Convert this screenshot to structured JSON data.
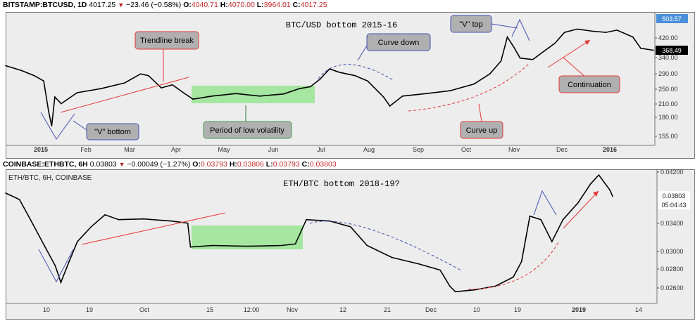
{
  "header_top": {
    "symbol": "BITSTAMP:BTCUSD, 1D",
    "last": "4017.25",
    "change": "−23.46 (−0.58%)",
    "o_label": "O:",
    "o": "4040.71",
    "h_label": "H:",
    "h": "4070.00",
    "l_label": "L:",
    "l": "3964.01",
    "c_label": "C:",
    "c": "4017.25"
  },
  "header_bottom": {
    "symbol": "COINBASE:ETHBTC, 6H",
    "last": "0.03803",
    "change": "−0.00049 (−1.27%)",
    "o_label": "O:",
    "o": "0.03793",
    "h_label": "H:",
    "h": "0.03806",
    "l_label": "L:",
    "l": "0.03793",
    "c_label": "C:",
    "c": "0.03803",
    "legend": "ETH/BTC, 6H, COINBASE"
  },
  "colors": {
    "up": "#000000",
    "red_line": "#e53935",
    "blue_line": "#3f51b5",
    "green_zone": "#a5e6a0",
    "price_tag_top": "#4a90d9",
    "callout_fill": "#b0b0b0"
  },
  "chart_data": [
    {
      "type": "line",
      "title": "BTC/USD bottom 2015-16",
      "yscale": "log",
      "ylim": [
        140,
        510
      ],
      "yticks": [
        "503.57",
        "420.00",
        "368.49",
        "340.00",
        "290.00",
        "250.00",
        "210.00",
        "180.00",
        "155.00"
      ],
      "current_price": "368.49",
      "xticks": [
        "2015",
        "Feb",
        "Mar",
        "Apr",
        "May",
        "Jun",
        "Jul",
        "Aug",
        "Sep",
        "Oct",
        "Nov",
        "Dec",
        "2016"
      ],
      "x_unit": "day index from 2014-12-20",
      "points": [
        [
          0,
          315
        ],
        [
          10,
          300
        ],
        [
          18,
          285
        ],
        [
          24,
          270
        ],
        [
          27,
          200
        ],
        [
          29,
          172
        ],
        [
          31,
          230
        ],
        [
          35,
          215
        ],
        [
          45,
          240
        ],
        [
          60,
          250
        ],
        [
          75,
          265
        ],
        [
          85,
          290
        ],
        [
          90,
          285
        ],
        [
          98,
          252
        ],
        [
          105,
          260
        ],
        [
          112,
          240
        ],
        [
          118,
          225
        ],
        [
          130,
          232
        ],
        [
          145,
          238
        ],
        [
          160,
          232
        ],
        [
          175,
          237
        ],
        [
          185,
          250
        ],
        [
          192,
          255
        ],
        [
          198,
          275
        ],
        [
          204,
          305
        ],
        [
          210,
          295
        ],
        [
          220,
          285
        ],
        [
          228,
          270
        ],
        [
          238,
          230
        ],
        [
          242,
          210
        ],
        [
          250,
          232
        ],
        [
          265,
          238
        ],
        [
          280,
          245
        ],
        [
          295,
          262
        ],
        [
          305,
          290
        ],
        [
          312,
          330
        ],
        [
          316,
          420
        ],
        [
          320,
          380
        ],
        [
          324,
          340
        ],
        [
          332,
          335
        ],
        [
          338,
          360
        ],
        [
          346,
          395
        ],
        [
          352,
          440
        ],
        [
          360,
          455
        ],
        [
          370,
          445
        ],
        [
          378,
          440
        ],
        [
          385,
          450
        ],
        [
          395,
          420
        ],
        [
          400,
          375
        ],
        [
          408,
          368
        ]
      ],
      "annotations": [
        "\"V\" bottom",
        "Trendline break",
        "Period of low volatility",
        "Curve down",
        "\"V\" top",
        "Curve up",
        "Continuation"
      ]
    },
    {
      "type": "line",
      "title": "ETH/BTC bottom 2018-19?",
      "yscale": "log",
      "ylim": [
        0.0248,
        0.0425
      ],
      "yticks": [
        "0.04200",
        "0.03803",
        "0.03400",
        "0.03000",
        "0.02800",
        "0.02600"
      ],
      "current_price": "0.03803",
      "countdown": "05:04:43",
      "xticks": [
        "10",
        "19",
        "Oct",
        "15",
        "12:00",
        "Nov",
        "12",
        "21",
        "Dec",
        "10",
        "19",
        "2019",
        "14"
      ],
      "x_unit": "6H bar index",
      "points": [
        [
          0,
          0.0385
        ],
        [
          10,
          0.0375
        ],
        [
          18,
          0.0345
        ],
        [
          28,
          0.031
        ],
        [
          36,
          0.0285
        ],
        [
          40,
          0.0266
        ],
        [
          46,
          0.029
        ],
        [
          52,
          0.0315
        ],
        [
          62,
          0.0335
        ],
        [
          72,
          0.0352
        ],
        [
          82,
          0.0345
        ],
        [
          100,
          0.0346
        ],
        [
          120,
          0.0343
        ],
        [
          132,
          0.034
        ],
        [
          134,
          0.0308
        ],
        [
          150,
          0.031
        ],
        [
          175,
          0.0309
        ],
        [
          200,
          0.031
        ],
        [
          210,
          0.0312
        ],
        [
          218,
          0.0345
        ],
        [
          235,
          0.0343
        ],
        [
          250,
          0.0335
        ],
        [
          262,
          0.031
        ],
        [
          280,
          0.0295
        ],
        [
          300,
          0.0287
        ],
        [
          315,
          0.028
        ],
        [
          322,
          0.0262
        ],
        [
          326,
          0.0256
        ],
        [
          340,
          0.0258
        ],
        [
          355,
          0.0262
        ],
        [
          368,
          0.0272
        ],
        [
          374,
          0.029
        ],
        [
          380,
          0.035
        ],
        [
          388,
          0.0345
        ],
        [
          396,
          0.0315
        ],
        [
          404,
          0.0345
        ],
        [
          415,
          0.037
        ],
        [
          424,
          0.04
        ],
        [
          430,
          0.0415
        ],
        [
          438,
          0.039
        ],
        [
          440,
          0.038
        ]
      ]
    }
  ]
}
